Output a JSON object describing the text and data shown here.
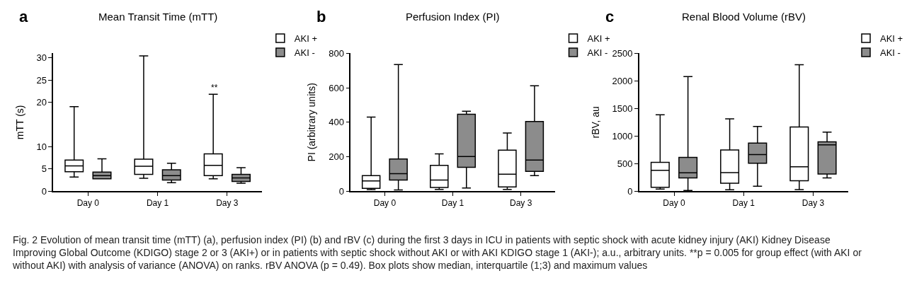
{
  "chart_data": [
    {
      "type": "box",
      "title": "Mean Transit Time (mTT)",
      "ylabel": "mTT (s)",
      "categories": [
        "Day 0",
        "Day 1",
        "Day 3"
      ],
      "series": [
        {
          "name": "AKI +",
          "color": "#ffffff",
          "boxes": [
            {
              "low": 3.2,
              "q1": 4.4,
              "median": 5.7,
              "q3": 7.0,
              "high": 19.0
            },
            {
              "low": 2.9,
              "q1": 3.8,
              "median": 5.6,
              "q3": 7.2,
              "high": 30.4
            },
            {
              "low": 2.8,
              "q1": 3.5,
              "median": 5.8,
              "q3": 8.4,
              "high": 21.8
            }
          ]
        },
        {
          "name": "AKI -",
          "color": "#8c8c8c",
          "boxes": [
            {
              "low": 2.8,
              "q1": 2.8,
              "median": 3.5,
              "q3": 4.3,
              "high": 7.3
            },
            {
              "low": 1.9,
              "q1": 2.5,
              "median": 3.5,
              "q3": 4.8,
              "high": 6.3
            },
            {
              "low": 1.8,
              "q1": 2.2,
              "median": 3.0,
              "q3": 3.8,
              "high": 5.3
            }
          ]
        }
      ],
      "ylim": [
        0,
        31
      ],
      "yticks": [
        0,
        5,
        10,
        20,
        25,
        30
      ],
      "legend": "top right",
      "annotations": [
        "a",
        "**"
      ]
    },
    {
      "type": "box",
      "title": "Perfusion Index (PI)",
      "ylabel": "PI (arbitrary units)",
      "categories": [
        "Day 0",
        "Day 1",
        "Day 3"
      ],
      "series": [
        {
          "name": "AKI +",
          "color": "#ffffff",
          "boxes": [
            {
              "low": 9,
              "q1": 17,
              "median": 60,
              "q3": 91,
              "high": 430
            },
            {
              "low": 10,
              "q1": 22,
              "median": 65,
              "q3": 150,
              "high": 217
            },
            {
              "low": 10,
              "q1": 25,
              "median": 99,
              "q3": 238,
              "high": 338
            }
          ]
        },
        {
          "name": "AKI -",
          "color": "#8c8c8c",
          "boxes": [
            {
              "low": 7,
              "q1": 65,
              "median": 102,
              "q3": 187,
              "high": 735
            },
            {
              "low": 19,
              "q1": 139,
              "median": 201,
              "q3": 446,
              "high": 464
            },
            {
              "low": 91,
              "q1": 115,
              "median": 181,
              "q3": 404,
              "high": 612
            }
          ]
        }
      ],
      "ylim": [
        0,
        800
      ],
      "yticks": [
        0,
        200,
        400,
        600,
        800
      ],
      "legend": "top right",
      "annotations": [
        "b"
      ]
    },
    {
      "type": "box",
      "title": "Renal Blood Volume (rBV)",
      "ylabel": "rBV, au",
      "categories": [
        "Day 0",
        "Day 1",
        "Day 3"
      ],
      "series": [
        {
          "name": "AKI +",
          "color": "#ffffff",
          "boxes": [
            {
              "low": 38,
              "q1": 72,
              "median": 380,
              "q3": 524,
              "high": 1385
            },
            {
              "low": 25,
              "q1": 144,
              "median": 338,
              "q3": 747,
              "high": 1313
            },
            {
              "low": 30,
              "q1": 190,
              "median": 443,
              "q3": 1166,
              "high": 2293
            }
          ]
        },
        {
          "name": "AKI -",
          "color": "#8c8c8c",
          "boxes": [
            {
              "low": 13,
              "q1": 241,
              "median": 334,
              "q3": 612,
              "high": 2078
            },
            {
              "low": 89,
              "q1": 507,
              "median": 663,
              "q3": 874,
              "high": 1174
            },
            {
              "low": 241,
              "q1": 312,
              "median": 840,
              "q3": 895,
              "high": 1073
            }
          ]
        }
      ],
      "ylim": [
        0,
        2500
      ],
      "yticks": [
        0,
        500,
        1000,
        1500,
        2000,
        2500
      ],
      "legend": "top right",
      "annotations": [
        "c",
        "Fig. 2 Evolution of mean transit time (mTT) (a), perfusion index (PI) (b) and rBV (c) during the first 3 days in ICU in patients with septic shock with acute kidney injury (AKI) Kidney Disease Improving Global Outcome (KDIGO) stage 2 or 3 (AKI+) or in patients with septic shock without AKI or with AKI KDIGO stage 1 (AKI-); a.u., arbitrary units. **p = 0.005 for group effect (with AKI or without AKI) with analysis of variance (ANOVA) on ranks. rBV ANOVA (p = 0.49). Box plots show median, interquartile (1;3) and maximum values"
      ]
    }
  ]
}
